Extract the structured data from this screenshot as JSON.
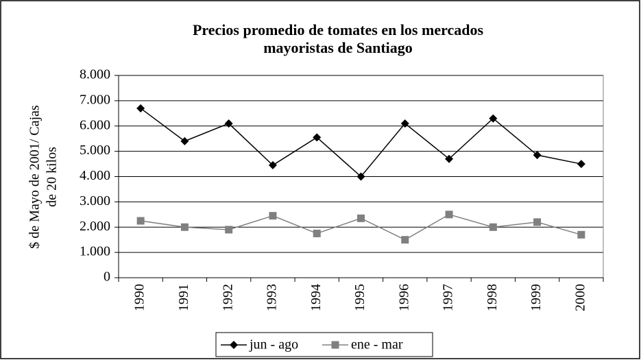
{
  "chart_data": {
    "type": "line",
    "title": [
      "Precios promedio de tomates en los mercados",
      "mayoristas de Santiago"
    ],
    "y_label": [
      "$ de Mayo de 2001/ Cajas",
      "de 20 kilos"
    ],
    "categories": [
      "1990",
      "1991",
      "1992",
      "1993",
      "1994",
      "1995",
      "1996",
      "1997",
      "1998",
      "1999",
      "2000"
    ],
    "series": [
      {
        "name": "jun - ago",
        "color": "#000000",
        "marker": "diamond",
        "values": [
          6700,
          5400,
          6100,
          4450,
          5550,
          4000,
          6100,
          4700,
          6300,
          4850,
          4500
        ]
      },
      {
        "name": "ene - mar",
        "color": "#808080",
        "marker": "square",
        "values": [
          2250,
          2000,
          1900,
          2450,
          1750,
          2350,
          1500,
          2500,
          2000,
          2200,
          1700
        ]
      }
    ],
    "ylim": [
      0,
      8000
    ],
    "yticks": [
      0,
      {
        "value": 1000,
        "label": "1.000"
      },
      {
        "value": 2000,
        "label": "2.000"
      },
      {
        "value": 3000,
        "label": "3.000"
      },
      {
        "value": 4000,
        "label": "4.000"
      },
      {
        "value": 5000,
        "label": "5.000"
      },
      {
        "value": 6000,
        "label": "6.000"
      },
      {
        "value": 7000,
        "label": "7.000"
      },
      {
        "value": 8000,
        "label": "8.000"
      }
    ],
    "grid": true,
    "legend": "bottom"
  }
}
